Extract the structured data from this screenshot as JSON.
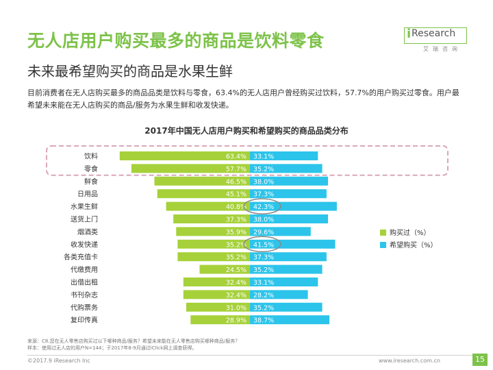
{
  "header": {
    "title": "无人店用户购买最多的商品是饮料零食",
    "subtitle": "未来最希望购买的商品是水果生鲜",
    "description": "目前消费者在无人店购买最多的商品品类是饮料与零食，63.4%的无人店用户曾经购买过饮料，57.7%的用户购买过零食。用户最希望未来能在无人店购买的商品/服务为水果生鲜和收发快递。"
  },
  "logo": {
    "i": "i",
    "research": "Research",
    "sub": "艾瑞咨询"
  },
  "colors": {
    "title": "#7dc24a",
    "bought": "#a6d13a",
    "wish": "#2cc4ea",
    "highlight_border": "#d9a6b8",
    "circle": "#8a8a8a"
  },
  "chart_data": {
    "type": "bar",
    "orientation": "horizontal-diverging",
    "title": "2017年中国无人店用户购买和希望购买的商品品类分布",
    "categories": [
      "饮料",
      "零食",
      "鲜食",
      "日用品",
      "水果生鲜",
      "送货上门",
      "烟酒类",
      "收发快递",
      "各类充值卡",
      "代缴费用",
      "出借出租",
      "书刊杂志",
      "代购票务",
      "复印传真"
    ],
    "series": [
      {
        "name": "购买过（%）",
        "values": [
          63.4,
          57.7,
          46.5,
          45.1,
          40.8,
          37.3,
          35.9,
          35.2,
          35.2,
          24.5,
          32.4,
          32.4,
          31.0,
          28.9
        ],
        "labels": [
          "63.4%",
          "57.7%",
          "46.5%",
          "45.1%",
          "40.8%",
          "37.3%",
          "35.9%",
          "35.2%",
          "35.2%",
          "24.5%",
          "32.4%",
          "32.4%",
          "31.0%",
          "28.9%"
        ]
      },
      {
        "name": "希望购买（%）",
        "values": [
          33.1,
          35.2,
          38.0,
          37.3,
          42.3,
          38.0,
          29.6,
          41.5,
          37.3,
          35.2,
          33.1,
          28.2,
          35.2,
          38.7
        ],
        "labels": [
          "33.1%",
          "35.2%",
          "38.0%",
          "37.3%",
          "42.3%",
          "38.0%",
          "29.6%",
          "41.5%",
          "37.3%",
          "35.2%",
          "33.1%",
          "28.2%",
          "35.2%",
          "38.7%"
        ]
      }
    ],
    "legend": [
      "购买过（%）",
      "希望购买（%）"
    ],
    "highlighted_categories": [
      "饮料",
      "零食"
    ],
    "circled_values": [
      {
        "category": "水果生鲜",
        "label": "42.3%"
      },
      {
        "category": "收发快递",
        "label": "41.5%"
      }
    ]
  },
  "source": {
    "line1": "来源：C8.您在无人零售店购买过以下哪种商品/服务？希望未来能在无人零售店购买哪种商品/服务？",
    "line2": "样本：使用过无人店的用户N=144；于2017年8-9月通过iClick网上调查获得。"
  },
  "footer": {
    "copyright": "©2017.9 iResearch Inc",
    "website": "www.iresearch.com.cn",
    "page": "15"
  }
}
